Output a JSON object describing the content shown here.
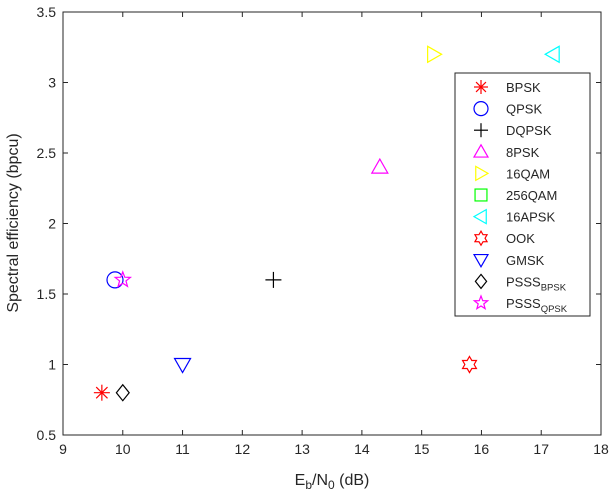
{
  "chart_data": {
    "type": "scatter",
    "title": "",
    "xlabel": {
      "base": "E",
      "sub1": "b",
      "mid": "/N",
      "sub2": "0",
      "tail": " (dB)"
    },
    "ylabel": "Spectral efficiency (bpcu)",
    "xlim": [
      9,
      18
    ],
    "ylim": [
      0.5,
      3.5
    ],
    "xticks": [
      9,
      10,
      11,
      12,
      13,
      14,
      15,
      16,
      17,
      18
    ],
    "yticks": [
      0.5,
      1,
      1.5,
      2,
      2.5,
      3,
      3.5
    ],
    "xtick_labels": [
      "9",
      "10",
      "11",
      "12",
      "13",
      "14",
      "15",
      "16",
      "17",
      "18"
    ],
    "ytick_labels": [
      "0.5",
      "1",
      "1.5",
      "2",
      "2.5",
      "3",
      "3.5"
    ],
    "grid": false,
    "legend_position": "top-right",
    "series": [
      {
        "name": "BPSK",
        "sub": "",
        "marker": "asterisk",
        "color": "#ff0000",
        "points": [
          [
            9.65,
            0.8
          ]
        ]
      },
      {
        "name": "QPSK",
        "sub": "",
        "marker": "circle",
        "color": "#0000ff",
        "points": [
          [
            9.87,
            1.6
          ]
        ]
      },
      {
        "name": "DQPSK",
        "sub": "",
        "marker": "plus",
        "color": "#000000",
        "points": [
          [
            12.52,
            1.6
          ]
        ]
      },
      {
        "name": "8PSK",
        "sub": "",
        "marker": "triangle-up",
        "color": "#ff00ff",
        "points": [
          [
            14.3,
            2.4
          ]
        ]
      },
      {
        "name": "16QAM",
        "sub": "",
        "marker": "triangle-right",
        "color": "#ffff00",
        "points": [
          [
            15.2,
            3.2
          ]
        ]
      },
      {
        "name": "256QAM",
        "sub": "",
        "marker": "square",
        "color": "#00ff00",
        "points": []
      },
      {
        "name": "16APSK",
        "sub": "",
        "marker": "triangle-left",
        "color": "#00ffff",
        "points": [
          [
            17.2,
            3.2
          ]
        ]
      },
      {
        "name": "OOK",
        "sub": "",
        "marker": "hexagram",
        "color": "#ff0000",
        "points": [
          [
            15.8,
            1.0
          ]
        ]
      },
      {
        "name": "GMSK",
        "sub": "",
        "marker": "triangle-down",
        "color": "#0000ff",
        "points": [
          [
            11.0,
            1.0
          ]
        ]
      },
      {
        "name": "PSSS",
        "sub": "BPSK",
        "marker": "diamond",
        "color": "#000000",
        "points": [
          [
            10.0,
            0.8
          ]
        ]
      },
      {
        "name": "PSSS",
        "sub": "QPSK",
        "marker": "pentagram",
        "color": "#ff00ff",
        "points": [
          [
            10.0,
            1.6
          ]
        ]
      }
    ]
  }
}
